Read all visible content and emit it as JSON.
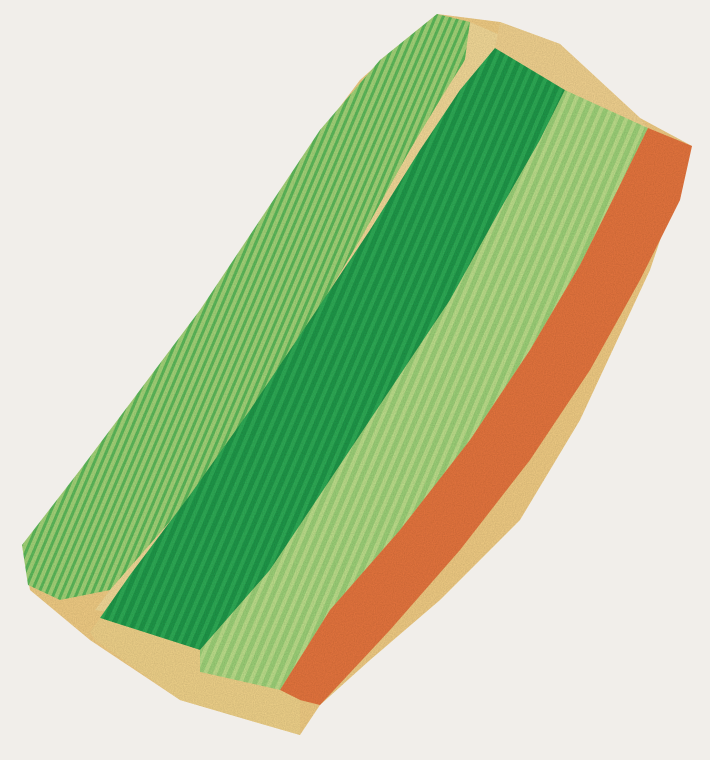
{
  "map": {
    "kind": "ndvi-field-orthomosaic",
    "background_color": "#f1eeea",
    "palette": {
      "dark_green": "#1f9a4a",
      "mid_green": "#4fb95a",
      "light_green": "#a9d97a",
      "pale_yellow": "#f3e29e",
      "buffer_yellow": "#f4cf86",
      "orange": "#ee8f4a",
      "red_orange": "#e06a3a"
    },
    "zones": [
      {
        "name": "outer-vegetation-strip",
        "class": "moderate"
      },
      {
        "name": "tan-road",
        "class": "bare"
      },
      {
        "name": "dense-crop-block",
        "class": "high"
      },
      {
        "name": "light-crop-block",
        "class": "moderate"
      },
      {
        "name": "eastern-soil-strip",
        "class": "low"
      }
    ]
  }
}
